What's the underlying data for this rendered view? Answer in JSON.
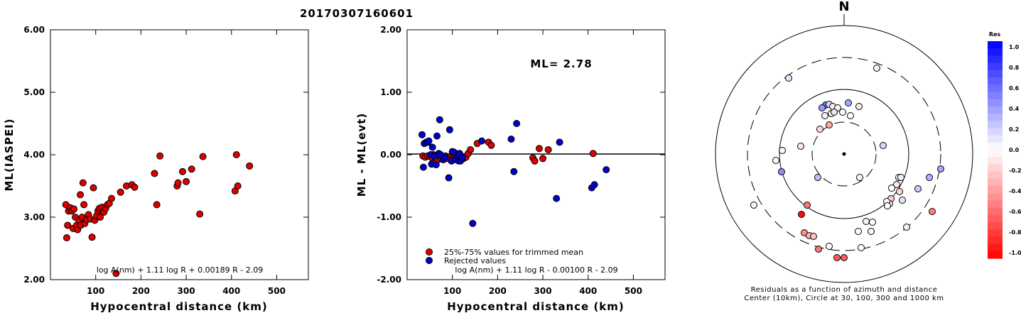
{
  "title": "20170307160601",
  "chart_data": [
    {
      "type": "scatter",
      "panel": "left",
      "xlabel": "Hypocentral distance (km)",
      "ylabel": "ML(IASPEI)",
      "xlim": [
        0,
        570
      ],
      "ylim": [
        2.0,
        6.0
      ],
      "xticks": [
        100,
        200,
        300,
        400,
        500
      ],
      "yticks": [
        "2.00",
        "3.00",
        "4.00",
        "5.00",
        "6.00"
      ],
      "formula": "log A(nm) + 1.11 log R + 0.00189 R - 2.09",
      "grid": false,
      "points": [
        [
          34,
          3.2
        ],
        [
          36,
          2.67
        ],
        [
          38,
          2.87
        ],
        [
          40,
          3.1
        ],
        [
          44,
          3.15
        ],
        [
          47,
          3.1
        ],
        [
          50,
          2.82
        ],
        [
          52,
          3.13
        ],
        [
          55,
          3.0
        ],
        [
          58,
          2.87
        ],
        [
          60,
          2.8
        ],
        [
          63,
          2.95
        ],
        [
          66,
          3.36
        ],
        [
          67,
          2.87
        ],
        [
          70,
          3.0
        ],
        [
          72,
          3.55
        ],
        [
          74,
          3.2
        ],
        [
          76,
          2.9
        ],
        [
          80,
          2.96
        ],
        [
          84,
          3.04
        ],
        [
          88,
          2.97
        ],
        [
          92,
          2.68
        ],
        [
          95,
          3.47
        ],
        [
          98,
          2.95
        ],
        [
          102,
          3.02
        ],
        [
          105,
          3.1
        ],
        [
          108,
          3.14
        ],
        [
          110,
          3.0
        ],
        [
          114,
          3.16
        ],
        [
          118,
          3.08
        ],
        [
          122,
          3.14
        ],
        [
          126,
          3.2
        ],
        [
          130,
          3.22
        ],
        [
          135,
          3.3
        ],
        [
          145,
          2.1
        ],
        [
          155,
          3.4
        ],
        [
          168,
          3.5
        ],
        [
          180,
          3.52
        ],
        [
          186,
          3.48
        ],
        [
          230,
          3.7
        ],
        [
          235,
          3.2
        ],
        [
          242,
          3.98
        ],
        [
          280,
          3.5
        ],
        [
          282,
          3.55
        ],
        [
          292,
          3.73
        ],
        [
          300,
          3.57
        ],
        [
          312,
          3.77
        ],
        [
          330,
          3.05
        ],
        [
          337,
          3.97
        ],
        [
          408,
          3.42
        ],
        [
          411,
          4.0
        ],
        [
          414,
          3.5
        ],
        [
          440,
          3.82
        ]
      ]
    },
    {
      "type": "scatter",
      "panel": "middle",
      "xlabel": "Hypocentral distance (km)",
      "ylabel": "ML - ML(evt)",
      "xlim": [
        0,
        570
      ],
      "ylim": [
        -2.0,
        2.0
      ],
      "xticks": [
        100,
        200,
        300,
        400,
        500
      ],
      "yticks": [
        "-2.00",
        "-1.00",
        "0.00",
        "1.00",
        "2.00"
      ],
      "annotation": "ML= 2.78",
      "formula": "log A(nm) + 1.11 log R - 0.00100 R - 2.09",
      "legend": [
        "25%-75% values for trimmed mean",
        "Rejected values"
      ],
      "legend_position": "bottom-left",
      "series": [
        {
          "name": "25%-75% values for trimmed mean",
          "color": "#dd0000",
          "points": [
            [
              35,
              -0.02
            ],
            [
              40,
              -0.04
            ],
            [
              45,
              -0.02
            ],
            [
              50,
              -0.03
            ],
            [
              55,
              -0.05
            ],
            [
              58,
              0.0
            ],
            [
              62,
              -0.05
            ],
            [
              65,
              -0.03
            ],
            [
              68,
              -0.08
            ],
            [
              72,
              -0.03
            ],
            [
              76,
              -0.06
            ],
            [
              80,
              -0.04
            ],
            [
              85,
              -0.02
            ],
            [
              90,
              -0.06
            ],
            [
              95,
              -0.03
            ],
            [
              100,
              -0.05
            ],
            [
              104,
              0.0
            ],
            [
              108,
              -0.03
            ],
            [
              112,
              -0.05
            ],
            [
              116,
              0.0
            ],
            [
              120,
              -0.03
            ],
            [
              125,
              -0.06
            ],
            [
              130,
              -0.04
            ],
            [
              135,
              0.02
            ],
            [
              140,
              0.08
            ],
            [
              155,
              0.18
            ],
            [
              180,
              0.2
            ],
            [
              186,
              0.15
            ],
            [
              278,
              -0.05
            ],
            [
              282,
              -0.1
            ],
            [
              292,
              0.1
            ],
            [
              300,
              -0.06
            ],
            [
              312,
              0.08
            ],
            [
              411,
              0.02
            ]
          ]
        },
        {
          "name": "Rejected values",
          "color": "#0000cc",
          "points": [
            [
              33,
              0.32
            ],
            [
              36,
              -0.2
            ],
            [
              38,
              0.18
            ],
            [
              42,
              0.2
            ],
            [
              46,
              0.2
            ],
            [
              48,
              0.22
            ],
            [
              52,
              0.0
            ],
            [
              54,
              -0.15
            ],
            [
              56,
              0.12
            ],
            [
              60,
              -0.02
            ],
            [
              64,
              -0.16
            ],
            [
              66,
              0.3
            ],
            [
              70,
              0.02
            ],
            [
              72,
              0.56
            ],
            [
              74,
              0.0
            ],
            [
              80,
              -0.08
            ],
            [
              84,
              -0.04
            ],
            [
              92,
              -0.37
            ],
            [
              94,
              0.4
            ],
            [
              98,
              -0.1
            ],
            [
              100,
              0.05
            ],
            [
              104,
              0.04
            ],
            [
              108,
              -0.08
            ],
            [
              112,
              -0.03
            ],
            [
              114,
              -0.1
            ],
            [
              116,
              0.02
            ],
            [
              118,
              -0.1
            ],
            [
              122,
              -0.05
            ],
            [
              145,
              -1.1
            ],
            [
              165,
              0.22
            ],
            [
              230,
              0.25
            ],
            [
              236,
              -0.27
            ],
            [
              242,
              0.5
            ],
            [
              330,
              -0.7
            ],
            [
              337,
              0.2
            ],
            [
              408,
              -0.53
            ],
            [
              414,
              -0.48
            ],
            [
              440,
              -0.24
            ]
          ]
        }
      ]
    },
    {
      "type": "polar-scatter",
      "panel": "right",
      "north_label": "N",
      "caption_line1": "Residuals as a function of azimuth and distance",
      "caption_line2": "Center (10km), Circle at 30, 100, 300 and 1000 km",
      "colorbar_title": "Res",
      "colorbar_ticks": [
        "1.0",
        "0.8",
        "0.6",
        "0.4",
        "0.2",
        "0.0",
        "-0.2",
        "-0.4",
        "-0.6",
        "-0.8",
        "-1.0"
      ],
      "points": [
        [
          1110,
          110,
          0.1
        ],
        [
          1234,
          96,
          -0.05
        ],
        [
          1162,
          148,
          0.55
        ],
        [
          1157,
          152,
          0.4
        ],
        [
          1167,
          147,
          0.15
        ],
        [
          1172,
          150,
          -0.1
        ],
        [
          1194,
          145,
          0.35
        ],
        [
          1179,
          152,
          -0.05
        ],
        [
          1186,
          158,
          0.0
        ],
        [
          1209,
          150,
          -0.1
        ],
        [
          1170,
          160,
          -0.08
        ],
        [
          1161,
          163,
          0.05
        ],
        [
          1197,
          163,
          0.0
        ],
        [
          1174,
          158,
          0.1
        ],
        [
          1167,
          176,
          -0.35
        ],
        [
          1154,
          182,
          -0.15
        ],
        [
          1127,
          206,
          -0.1
        ],
        [
          1101,
          212,
          -0.03
        ],
        [
          1243,
          205,
          0.15
        ],
        [
          1092,
          226,
          0.0
        ],
        [
          1100,
          242,
          0.45
        ],
        [
          1151,
          250,
          0.25
        ],
        [
          1210,
          250,
          -0.03
        ],
        [
          1265,
          250,
          0.0
        ],
        [
          1262,
          260,
          -0.1
        ],
        [
          1268,
          250,
          0.05
        ],
        [
          1255,
          265,
          0.0
        ],
        [
          1254,
          280,
          -0.2
        ],
        [
          1252,
          287,
          0.05
        ],
        [
          1248,
          284,
          0.0
        ],
        [
          1270,
          282,
          0.1
        ],
        [
          1249,
          290,
          0.0
        ],
        [
          1266,
          270,
          -0.15
        ],
        [
          1308,
          250,
          0.3
        ],
        [
          1324,
          238,
          0.35
        ],
        [
          1292,
          266,
          0.2
        ],
        [
          1312,
          298,
          -0.5
        ],
        [
          1061,
          289,
          -0.05
        ],
        [
          1128,
          302,
          -0.95
        ],
        [
          1136,
          289,
          -0.55
        ],
        [
          1219,
          312,
          0.05
        ],
        [
          1228,
          313,
          0.0
        ],
        [
          1208,
          326,
          0.0
        ],
        [
          1226,
          326,
          0.05
        ],
        [
          1276,
          320,
          0.05
        ],
        [
          1132,
          328,
          -0.45
        ],
        [
          1139,
          332,
          -0.3
        ],
        [
          1145,
          333,
          -0.25
        ],
        [
          1167,
          347,
          0.0
        ],
        [
          1212,
          349,
          0.0
        ],
        [
          1152,
          351,
          -0.55
        ],
        [
          1178,
          363,
          -0.65
        ],
        [
          1188,
          363,
          -0.65
        ]
      ]
    }
  ]
}
